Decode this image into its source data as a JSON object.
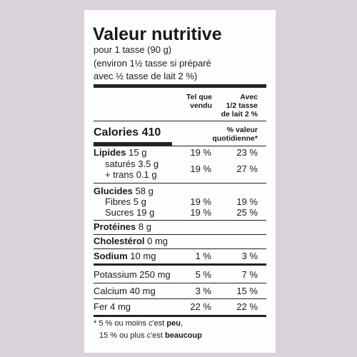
{
  "header": {
    "title": "Valeur nutritive",
    "serving": [
      "pour 1 tasse (90 g)",
      "(environ 1½ tasse si préparé",
      "avec ½ tasse de lait 2 %)"
    ]
  },
  "columns": {
    "col1": [
      "Tel que",
      "vendu"
    ],
    "col2": [
      "Avec",
      "1/2 tasse",
      "de lait 2 %"
    ],
    "dv": [
      "% valeur",
      "quotidienne*"
    ]
  },
  "calories": {
    "label": "Calories",
    "value": "410"
  },
  "rows": [
    {
      "label": "Lipides",
      "amount": "15 g",
      "dv1": "19 %",
      "dv2": "23 %"
    },
    {
      "labels": [
        "saturés 3.5 g",
        "+ trans 0.1 g"
      ],
      "dv1": "19 %",
      "dv2": "27 %"
    },
    {
      "label": "Glucides",
      "amount": "58 g"
    },
    {
      "label": "Fibres 5 g",
      "dv1": "19 %",
      "dv2": "19 %"
    },
    {
      "label": "Sucres 19 g",
      "dv1": "19 %",
      "dv2": "25 %"
    },
    {
      "label": "Protéines",
      "amount": "8 g"
    },
    {
      "label": "Cholestérol",
      "amount": "0 mg"
    },
    {
      "label": "Sodium",
      "amount": "10 mg",
      "dv1": "1 %",
      "dv2": "3 %"
    },
    {
      "label": "Potassium 250 mg",
      "dv1": "5 %",
      "dv2": "7 %"
    },
    {
      "label": "Calcium 40 mg",
      "dv1": "3 %",
      "dv2": "15 %"
    },
    {
      "label": "Fer 4 mg",
      "dv1": "22 %",
      "dv2": "22 %"
    }
  ],
  "footnote": {
    "line1": [
      "* 5 % ou moins c'est",
      "peu",
      ","
    ],
    "line2": [
      "15 % ou plus c'est",
      "beaucoup"
    ]
  }
}
